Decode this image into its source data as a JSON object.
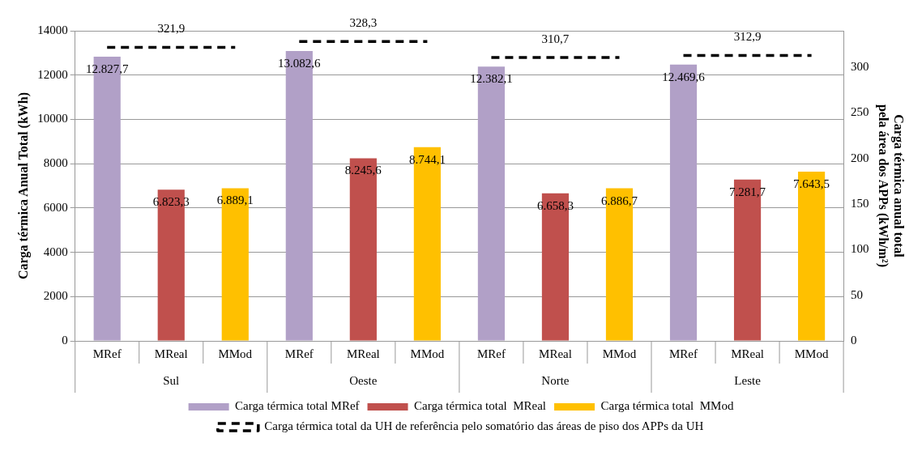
{
  "chart_data": {
    "type": "bar",
    "ylabel": "Carga térmica Anual Total (kWh)",
    "y2label": "Carga térmica anual total\npela área dos APPs (kWh/m²)",
    "categories": [
      "MRef",
      "MReal",
      "MMod",
      "MRef",
      "MReal",
      "MMod",
      "MRef",
      "MReal",
      "MMod",
      "MRef",
      "MReal",
      "MMod"
    ],
    "annotations": [
      "Sul",
      "Oeste",
      "Norte",
      "Leste"
    ],
    "ylim": [
      0,
      14000
    ],
    "yticks": [
      0,
      2000,
      4000,
      6000,
      8000,
      10000,
      12000,
      14000
    ],
    "y2lim": [
      0,
      340
    ],
    "y2ticks": [
      0,
      50,
      100,
      150,
      200,
      250,
      300
    ],
    "grid": "y",
    "legend": "bottom",
    "series": [
      {
        "name": "Carga térmica total MRef",
        "color": "#b1a0c7",
        "values": [
          12827.7,
          null,
          null,
          13082.6,
          null,
          null,
          12382.1,
          null,
          null,
          12469.6,
          null,
          null
        ],
        "value_labels": [
          "12.827,7",
          null,
          null,
          "13.082,6",
          null,
          null,
          "12.382,1",
          null,
          null,
          "12.469,6",
          null,
          null
        ]
      },
      {
        "name": "Carga térmica total  MReal",
        "color": "#c0504d",
        "values": [
          null,
          6823.3,
          null,
          null,
          8245.6,
          null,
          null,
          6658.3,
          null,
          null,
          7281.7,
          null
        ],
        "value_labels": [
          null,
          "6.823,3",
          null,
          null,
          "8.245,6",
          null,
          null,
          "6.658,3",
          null,
          null,
          "7.281,7",
          null
        ]
      },
      {
        "name": "Carga térmica total  MMod",
        "color": "#ffc000",
        "values": [
          null,
          null,
          6889.1,
          null,
          null,
          8744.1,
          null,
          null,
          6886.7,
          null,
          null,
          7643.5
        ],
        "value_labels": [
          null,
          null,
          "6.889,1",
          null,
          null,
          "8.744,1",
          null,
          null,
          "6.886,7",
          null,
          null,
          "7.643,5"
        ]
      },
      {
        "name": "Carga térmica total da UH de referência pelo somatório das áreas de piso dos APPs da UH",
        "type": "line",
        "axis": "y2",
        "line_style": "dashed",
        "marker": "none",
        "color": "#000000",
        "values": [
          321.9,
          321.9,
          321.9,
          null,
          null,
          null,
          null,
          null,
          null,
          null,
          null,
          null
        ],
        "value_labels": [
          null,
          "321,9",
          null,
          null,
          null,
          null,
          null,
          null,
          null,
          null,
          null,
          null
        ]
      },
      {
        "type": "line",
        "axis": "y2",
        "line_style": "dashed",
        "marker": "none",
        "color": "#000000",
        "values": [
          null,
          null,
          null,
          328.3,
          328.3,
          328.3,
          null,
          null,
          null,
          null,
          null,
          null
        ],
        "value_labels": [
          null,
          null,
          null,
          null,
          "328,3",
          null,
          null,
          null,
          null,
          null,
          null,
          null
        ]
      },
      {
        "type": "line",
        "axis": "y2",
        "line_style": "dashed",
        "marker": "none",
        "color": "#000000",
        "values": [
          null,
          null,
          null,
          null,
          null,
          null,
          310.7,
          310.7,
          310.7,
          null,
          null,
          null
        ],
        "value_labels": [
          null,
          null,
          null,
          null,
          null,
          null,
          null,
          "310,7",
          null,
          null,
          null,
          null
        ]
      },
      {
        "type": "line",
        "axis": "y2",
        "line_style": "dashed",
        "marker": "none",
        "color": "#000000",
        "values": [
          null,
          null,
          null,
          null,
          null,
          null,
          null,
          null,
          null,
          312.9,
          312.9,
          312.9
        ],
        "value_labels": [
          null,
          null,
          null,
          null,
          null,
          null,
          null,
          null,
          null,
          null,
          "312,9",
          null
        ]
      }
    ]
  }
}
